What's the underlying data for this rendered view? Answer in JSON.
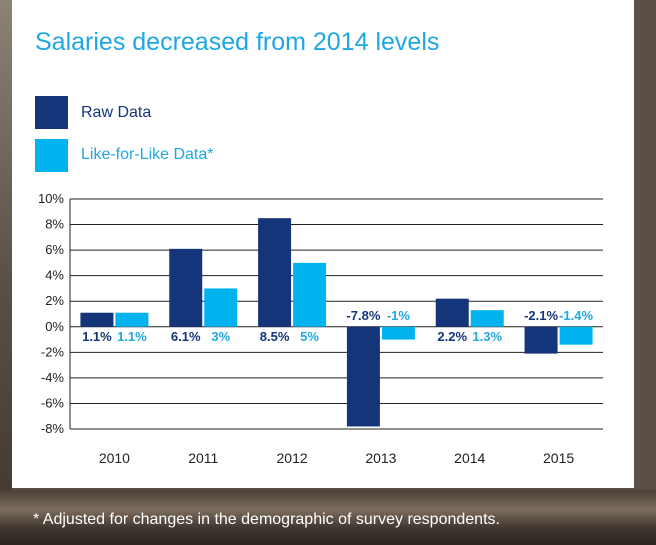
{
  "chart_data": {
    "type": "bar",
    "title": "Salaries decreased from 2014 levels",
    "categories": [
      "2010",
      "2011",
      "2012",
      "2013",
      "2014",
      "2015"
    ],
    "series": [
      {
        "name": "Raw Data",
        "color": "#15357a",
        "values": [
          1.1,
          6.1,
          8.5,
          -7.8,
          2.2,
          -2.1
        ],
        "labels": [
          "1.1%",
          "6.1%",
          "8.5%",
          "-7.8%",
          "2.2%",
          "-2.1%"
        ]
      },
      {
        "name": "Like-for-Like Data*",
        "color": "#00b2ee",
        "values": [
          1.1,
          3,
          5,
          -1,
          1.3,
          -1.4
        ],
        "labels": [
          "1.1%",
          "3%",
          "5%",
          "-1%",
          "1.3%",
          "-1.4%"
        ]
      }
    ],
    "ylim": [
      -8,
      10
    ],
    "yticks": [
      10,
      8,
      6,
      4,
      2,
      0,
      -2,
      -4,
      -6,
      -8
    ],
    "ytick_labels": [
      "10%",
      "8%",
      "6%",
      "4%",
      "2%",
      "0%",
      "-2%",
      "-4%",
      "-6%",
      "-8%"
    ],
    "grid": true,
    "legend_position": "top-left"
  },
  "footnote": "* Adjusted for changes in the demographic of survey respondents."
}
